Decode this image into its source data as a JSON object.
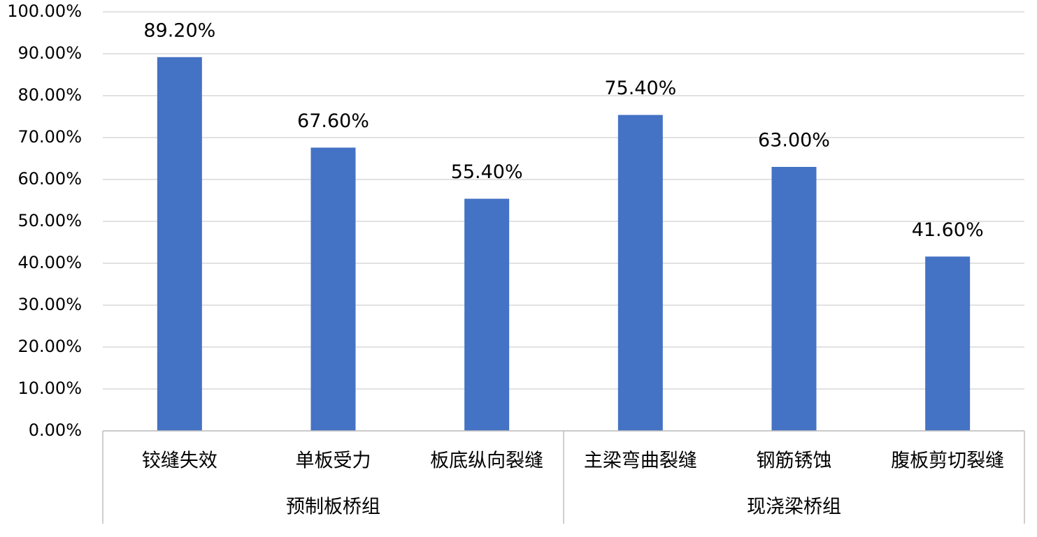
{
  "chart_data": {
    "type": "bar",
    "color": "#4472c4",
    "grid": true,
    "groups": [
      {
        "name": "预制板桥组",
        "categories": [
          "铰缝失效",
          "单板受力",
          "板底纵向裂缝"
        ],
        "values": [
          89.2,
          67.6,
          55.4
        ],
        "value_labels": [
          "89.20%",
          "67.60%",
          "55.40%"
        ]
      },
      {
        "name": "现浇梁桥组",
        "categories": [
          "主梁弯曲裂缝",
          "钢筋锈蚀",
          "腹板剪切裂缝"
        ],
        "values": [
          75.4,
          63.0,
          41.6
        ],
        "value_labels": [
          "75.40%",
          "63.00%",
          "41.60%"
        ]
      }
    ],
    "ylim": [
      0,
      100
    ],
    "yticks": [
      {
        "value": 0,
        "label": "0.00%"
      },
      {
        "value": 10,
        "label": "10.00%"
      },
      {
        "value": 20,
        "label": "20.00%"
      },
      {
        "value": 30,
        "label": "30.00%"
      },
      {
        "value": 40,
        "label": "40.00%"
      },
      {
        "value": 50,
        "label": "50.00%"
      },
      {
        "value": 60,
        "label": "60.00%"
      },
      {
        "value": 70,
        "label": "70.00%"
      },
      {
        "value": 80,
        "label": "80.00%"
      },
      {
        "value": 90,
        "label": "90.00%"
      },
      {
        "value": 100,
        "label": "100.00%"
      }
    ]
  }
}
